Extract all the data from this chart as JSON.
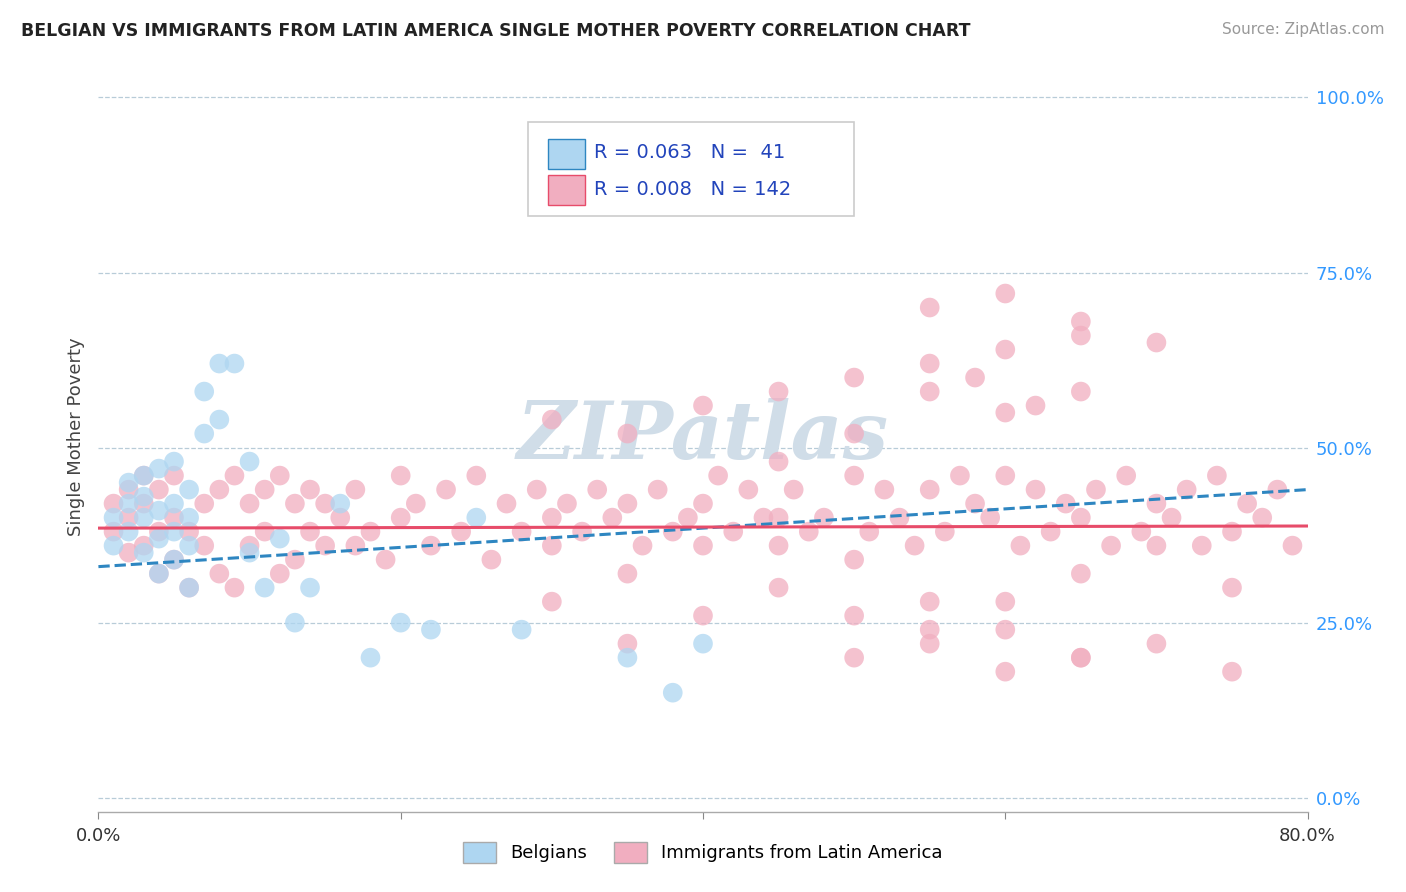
{
  "title": "BELGIAN VS IMMIGRANTS FROM LATIN AMERICA SINGLE MOTHER POVERTY CORRELATION CHART",
  "source": "Source: ZipAtlas.com",
  "ylabel": "Single Mother Poverty",
  "xlim": [
    0.0,
    0.8
  ],
  "ylim": [
    -0.02,
    1.05
  ],
  "yticks": [
    0.0,
    0.25,
    0.5,
    0.75,
    1.0
  ],
  "ytick_labels": [
    "0.0%",
    "25.0%",
    "50.0%",
    "75.0%",
    "100.0%"
  ],
  "xticks": [
    0.0,
    0.2,
    0.4,
    0.6,
    0.8
  ],
  "xtick_labels": [
    "0.0%",
    "",
    "",
    "",
    "80.0%"
  ],
  "belgian_R": 0.063,
  "belgian_N": 41,
  "latin_R": 0.008,
  "latin_N": 142,
  "belgian_color": "#aed6f1",
  "latin_color": "#f1aec0",
  "belgian_line_color": "#2e86c1",
  "latin_line_color": "#e74c6a",
  "watermark": "ZIPatlas",
  "watermark_color": "#d0dde8",
  "legend_color": "#2244bb",
  "belgian_scatter_x": [
    0.01,
    0.01,
    0.02,
    0.02,
    0.02,
    0.03,
    0.03,
    0.03,
    0.03,
    0.04,
    0.04,
    0.04,
    0.04,
    0.05,
    0.05,
    0.05,
    0.05,
    0.06,
    0.06,
    0.06,
    0.06,
    0.07,
    0.07,
    0.08,
    0.08,
    0.09,
    0.1,
    0.1,
    0.11,
    0.12,
    0.13,
    0.14,
    0.16,
    0.18,
    0.2,
    0.22,
    0.25,
    0.28,
    0.35,
    0.38,
    0.4
  ],
  "belgian_scatter_y": [
    0.36,
    0.4,
    0.38,
    0.42,
    0.45,
    0.35,
    0.4,
    0.43,
    0.46,
    0.32,
    0.37,
    0.41,
    0.47,
    0.34,
    0.38,
    0.42,
    0.48,
    0.3,
    0.36,
    0.4,
    0.44,
    0.52,
    0.58,
    0.54,
    0.62,
    0.62,
    0.48,
    0.35,
    0.3,
    0.37,
    0.25,
    0.3,
    0.42,
    0.2,
    0.25,
    0.24,
    0.4,
    0.24,
    0.2,
    0.15,
    0.22
  ],
  "latin_scatter_x": [
    0.01,
    0.01,
    0.02,
    0.02,
    0.02,
    0.03,
    0.03,
    0.03,
    0.04,
    0.04,
    0.04,
    0.05,
    0.05,
    0.05,
    0.06,
    0.06,
    0.07,
    0.07,
    0.08,
    0.08,
    0.09,
    0.09,
    0.1,
    0.1,
    0.11,
    0.11,
    0.12,
    0.12,
    0.13,
    0.13,
    0.14,
    0.14,
    0.15,
    0.15,
    0.16,
    0.17,
    0.17,
    0.18,
    0.19,
    0.2,
    0.2,
    0.21,
    0.22,
    0.23,
    0.24,
    0.25,
    0.26,
    0.27,
    0.28,
    0.29,
    0.3,
    0.3,
    0.31,
    0.32,
    0.33,
    0.34,
    0.35,
    0.36,
    0.37,
    0.38,
    0.39,
    0.4,
    0.41,
    0.42,
    0.43,
    0.44,
    0.45,
    0.46,
    0.47,
    0.48,
    0.5,
    0.51,
    0.52,
    0.53,
    0.54,
    0.55,
    0.56,
    0.57,
    0.58,
    0.59,
    0.6,
    0.61,
    0.62,
    0.63,
    0.64,
    0.65,
    0.66,
    0.67,
    0.68,
    0.69,
    0.7,
    0.71,
    0.72,
    0.73,
    0.74,
    0.75,
    0.76,
    0.77,
    0.78,
    0.79,
    0.55,
    0.58,
    0.62,
    0.35,
    0.4,
    0.45,
    0.5,
    0.55,
    0.6,
    0.65,
    0.7,
    0.75,
    0.3,
    0.35,
    0.4,
    0.45,
    0.5,
    0.55,
    0.6,
    0.65,
    0.7,
    0.75,
    0.55,
    0.6,
    0.65,
    0.7,
    0.5,
    0.45,
    0.6,
    0.65,
    0.5,
    0.55,
    0.6,
    0.65,
    0.3,
    0.35,
    0.4,
    0.45,
    0.5,
    0.55,
    0.6,
    0.65
  ],
  "latin_scatter_y": [
    0.38,
    0.42,
    0.35,
    0.4,
    0.44,
    0.36,
    0.42,
    0.46,
    0.32,
    0.38,
    0.44,
    0.34,
    0.4,
    0.46,
    0.3,
    0.38,
    0.36,
    0.42,
    0.32,
    0.44,
    0.3,
    0.46,
    0.36,
    0.42,
    0.38,
    0.44,
    0.32,
    0.46,
    0.34,
    0.42,
    0.38,
    0.44,
    0.36,
    0.42,
    0.4,
    0.36,
    0.44,
    0.38,
    0.34,
    0.46,
    0.4,
    0.42,
    0.36,
    0.44,
    0.38,
    0.46,
    0.34,
    0.42,
    0.38,
    0.44,
    0.36,
    0.4,
    0.42,
    0.38,
    0.44,
    0.4,
    0.42,
    0.36,
    0.44,
    0.38,
    0.4,
    0.42,
    0.46,
    0.38,
    0.44,
    0.4,
    0.36,
    0.44,
    0.38,
    0.4,
    0.46,
    0.38,
    0.44,
    0.4,
    0.36,
    0.44,
    0.38,
    0.46,
    0.42,
    0.4,
    0.46,
    0.36,
    0.44,
    0.38,
    0.42,
    0.4,
    0.44,
    0.36,
    0.46,
    0.38,
    0.42,
    0.4,
    0.44,
    0.36,
    0.46,
    0.38,
    0.42,
    0.4,
    0.44,
    0.36,
    0.58,
    0.6,
    0.56,
    0.22,
    0.26,
    0.3,
    0.34,
    0.28,
    0.24,
    0.2,
    0.22,
    0.18,
    0.28,
    0.32,
    0.36,
    0.4,
    0.2,
    0.24,
    0.28,
    0.32,
    0.36,
    0.3,
    0.7,
    0.72,
    0.68,
    0.65,
    0.52,
    0.48,
    0.55,
    0.58,
    0.26,
    0.22,
    0.18,
    0.2,
    0.54,
    0.52,
    0.56,
    0.58,
    0.6,
    0.62,
    0.64,
    0.66
  ],
  "bel_line_x0": 0.0,
  "bel_line_y0": 0.33,
  "bel_line_x1": 0.8,
  "bel_line_y1": 0.44,
  "lat_line_x0": 0.0,
  "lat_line_y0": 0.385,
  "lat_line_x1": 0.8,
  "lat_line_y1": 0.388
}
